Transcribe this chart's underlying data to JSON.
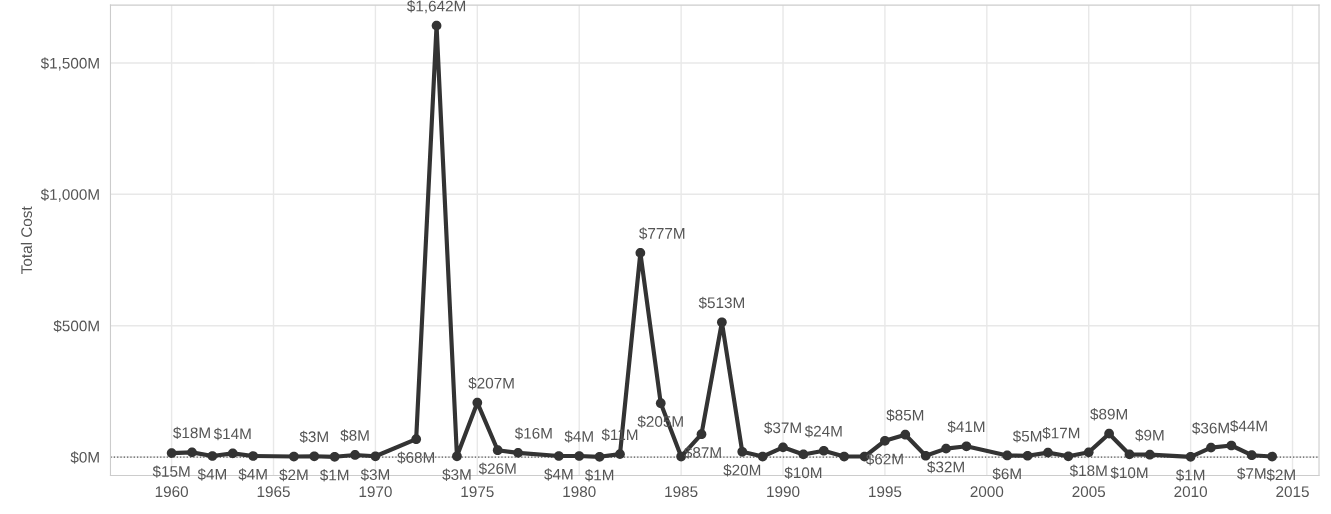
{
  "chart_data": {
    "type": "line",
    "ylabel": "Total Cost",
    "x": [
      1960,
      1961,
      1962,
      1963,
      1964,
      1966,
      1967,
      1968,
      1969,
      1970,
      1972,
      1973,
      1974,
      1975,
      1976,
      1977,
      1979,
      1980,
      1981,
      1982,
      1983,
      1984,
      1985,
      1986,
      1987,
      1988,
      1989,
      1990,
      1991,
      1992,
      1993,
      1994,
      1995,
      1996,
      1997,
      1998,
      1999,
      2001,
      2002,
      2003,
      2004,
      2005,
      2006,
      2007,
      2008,
      2010,
      2011,
      2012,
      2013,
      2014
    ],
    "series": [
      {
        "color": "#333333",
        "values": [
          15,
          18,
          4,
          14,
          4,
          2,
          3,
          1,
          8,
          3,
          68,
          1642,
          3,
          207,
          26,
          16,
          4,
          4,
          1,
          11,
          777,
          205,
          2,
          87,
          513,
          20,
          2,
          37,
          10,
          24,
          2,
          2,
          62,
          85,
          5,
          32,
          41,
          6,
          5,
          17,
          3,
          18,
          89,
          10,
          9,
          1,
          36,
          44,
          7,
          2
        ],
        "value_labels": [
          "$15M",
          "$18M",
          "$4M",
          "$14M",
          "$4M",
          "$2M",
          "$3M",
          "$1M",
          "$8M",
          "$3M",
          "$68M",
          "$1,642M",
          "$3M",
          "$207M",
          "$26M",
          "$16M",
          "$4M",
          "$4M",
          "$1M",
          "$11M",
          "$777M",
          "$205M",
          null,
          "$87M",
          "$513M",
          "$20M",
          null,
          "$37M",
          "$10M",
          "$24M",
          null,
          null,
          "$62M",
          "$85M",
          null,
          "$32M",
          "$41M",
          "$6M",
          "$5M",
          "$17M",
          null,
          "$18M",
          "$89M",
          "$10M",
          "$9M",
          "$1M",
          "$36M",
          "$44M",
          "$7M",
          "$2M"
        ]
      }
    ],
    "xlim": [
      1957,
      2016.3
    ],
    "xticks": [
      1960,
      1965,
      1970,
      1975,
      1980,
      1985,
      1990,
      1995,
      2000,
      2005,
      2010,
      2015
    ],
    "ylim": [
      -70,
      1720
    ],
    "yticks": [
      {
        "value": 0,
        "label": "$0M"
      },
      {
        "value": 500,
        "label": "$500M"
      },
      {
        "value": 1000,
        "label": "$1,000M"
      },
      {
        "value": 1500,
        "label": "$1,500M"
      }
    ],
    "ref_lines": [
      {
        "axis": "y",
        "value": 0,
        "color": "#555555",
        "line_style": "dotted"
      }
    ],
    "grid": true,
    "marker": "circle",
    "line_style": "solid",
    "legend": false
  }
}
